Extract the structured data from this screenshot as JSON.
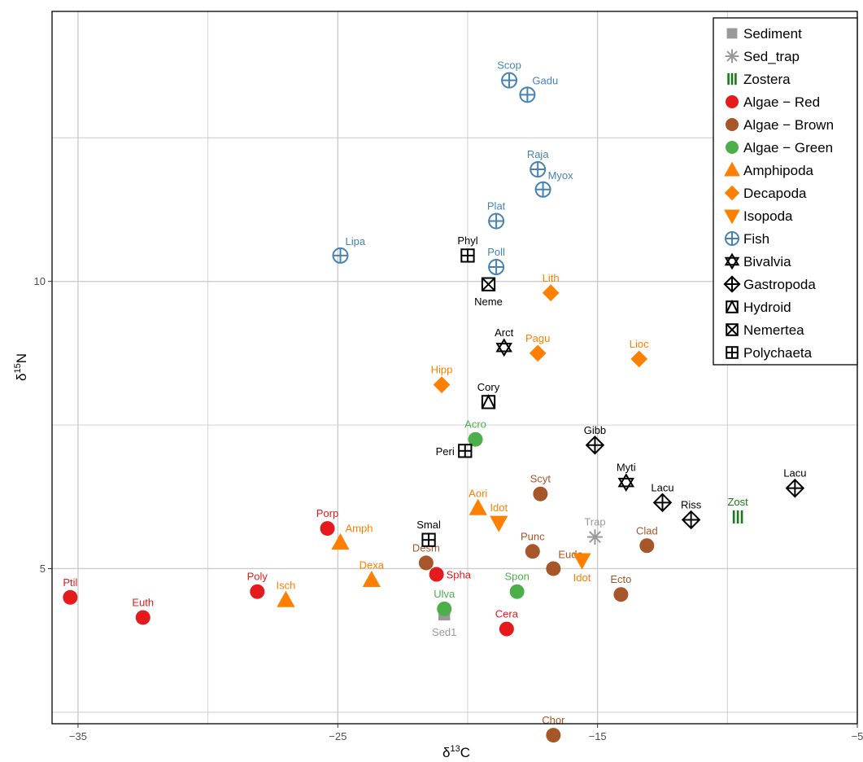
{
  "chart_data": {
    "type": "scatter",
    "xlabel": "δ13C",
    "xlabel_main": "δ",
    "xlabel_sup": "13",
    "xlabel_unit": "C",
    "ylabel": "δ15N",
    "ylabel_main": "δ",
    "ylabel_sup": "15",
    "ylabel_unit": "N",
    "xlim": [
      -36,
      -5
    ],
    "ylim": [
      2.3,
      14.7
    ],
    "xticks": [
      -35,
      -25,
      -15,
      -5
    ],
    "xtick_labels": [
      "−35",
      "−25",
      "−15",
      "−5"
    ],
    "yticks": [
      5,
      10
    ],
    "ytick_labels": [
      "5",
      "10"
    ],
    "grid": true,
    "legend_position": "top-right",
    "groups": [
      {
        "name": "Sediment",
        "marker": "square",
        "color": "#999999"
      },
      {
        "name": "Sed_trap",
        "marker": "asterisk",
        "color": "#999999"
      },
      {
        "name": "Zostera",
        "marker": "bars",
        "color": "#1a7a1a"
      },
      {
        "name": "Algae − Red",
        "marker": "circle",
        "color": "#e41a1c"
      },
      {
        "name": "Algae − Brown",
        "marker": "circle",
        "color": "#a65628"
      },
      {
        "name": "Algae − Green",
        "marker": "circle",
        "color": "#4daf4a"
      },
      {
        "name": "Amphipoda",
        "marker": "triangle-up",
        "color": "#ff7f00"
      },
      {
        "name": "Decapoda",
        "marker": "diamond",
        "color": "#ff7f00"
      },
      {
        "name": "Isopoda",
        "marker": "triangle-down",
        "color": "#ff7f00"
      },
      {
        "name": "Fish",
        "marker": "circle-plus",
        "color": "#4682b4"
      },
      {
        "name": "Bivalvia",
        "marker": "star",
        "color": "#000000"
      },
      {
        "name": "Gastropoda",
        "marker": "diamond-plus",
        "color": "#000000"
      },
      {
        "name": "Hydroid",
        "marker": "square-triangle",
        "color": "#000000"
      },
      {
        "name": "Nemertea",
        "marker": "square-x",
        "color": "#000000"
      },
      {
        "name": "Polychaeta",
        "marker": "square-plus",
        "color": "#000000"
      }
    ],
    "points": [
      {
        "label": "Sed1",
        "group": "Sediment",
        "x": -20.9,
        "y": 4.2,
        "lpos": "below"
      },
      {
        "label": "Trap",
        "group": "Sed_trap",
        "x": -15.1,
        "y": 5.55,
        "lpos": "above"
      },
      {
        "label": "Zost",
        "group": "Zostera",
        "x": -9.6,
        "y": 5.9,
        "lpos": "above"
      },
      {
        "label": "Ptil",
        "group": "Algae − Red",
        "x": -35.3,
        "y": 4.5,
        "lpos": "above"
      },
      {
        "label": "Euth",
        "group": "Algae − Red",
        "x": -32.5,
        "y": 4.15,
        "lpos": "above"
      },
      {
        "label": "Poly",
        "group": "Algae − Red",
        "x": -28.1,
        "y": 4.6,
        "lpos": "above"
      },
      {
        "label": "Porp",
        "group": "Algae − Red",
        "x": -25.4,
        "y": 5.7,
        "lpos": "above"
      },
      {
        "label": "Spha",
        "group": "Algae − Red",
        "x": -21.2,
        "y": 4.9,
        "lpos": "right"
      },
      {
        "label": "Cera",
        "group": "Algae − Red",
        "x": -18.5,
        "y": 3.95,
        "lpos": "above"
      },
      {
        "label": "Desm",
        "group": "Algae − Brown",
        "x": -21.6,
        "y": 5.1,
        "lpos": "above"
      },
      {
        "label": "Punc",
        "group": "Algae − Brown",
        "x": -17.5,
        "y": 5.3,
        "lpos": "above"
      },
      {
        "label": "Eude",
        "group": "Algae − Brown",
        "x": -16.7,
        "y": 5.0,
        "lpos": "above-right"
      },
      {
        "label": "Scyt",
        "group": "Algae − Brown",
        "x": -17.2,
        "y": 6.3,
        "lpos": "above"
      },
      {
        "label": "Clad",
        "group": "Algae − Brown",
        "x": -13.1,
        "y": 5.4,
        "lpos": "above"
      },
      {
        "label": "Ecto",
        "group": "Algae − Brown",
        "x": -14.1,
        "y": 4.55,
        "lpos": "above"
      },
      {
        "label": "Chor",
        "group": "Algae − Brown",
        "x": -16.7,
        "y": 2.1,
        "lpos": "above"
      },
      {
        "label": "Acro",
        "group": "Algae − Green",
        "x": -19.7,
        "y": 7.25,
        "lpos": "above"
      },
      {
        "label": "Spon",
        "group": "Algae − Green",
        "x": -18.1,
        "y": 4.6,
        "lpos": "above"
      },
      {
        "label": "Ulva",
        "group": "Algae − Green",
        "x": -20.9,
        "y": 4.3,
        "lpos": "above"
      },
      {
        "label": "Amph",
        "group": "Amphipoda",
        "x": -24.9,
        "y": 5.45,
        "lpos": "above-right"
      },
      {
        "label": "Isch",
        "group": "Amphipoda",
        "x": -27.0,
        "y": 4.45,
        "lpos": "above"
      },
      {
        "label": "Dexa",
        "group": "Amphipoda",
        "x": -23.7,
        "y": 4.8,
        "lpos": "above"
      },
      {
        "label": "Aori",
        "group": "Amphipoda",
        "x": -19.6,
        "y": 6.05,
        "lpos": "above"
      },
      {
        "label": "Hipp",
        "group": "Decapoda",
        "x": -21.0,
        "y": 8.2,
        "lpos": "above"
      },
      {
        "label": "Lith",
        "group": "Decapoda",
        "x": -16.8,
        "y": 9.8,
        "lpos": "above"
      },
      {
        "label": "Pagu",
        "group": "Decapoda",
        "x": -17.3,
        "y": 8.75,
        "lpos": "above"
      },
      {
        "label": "Lioc",
        "group": "Decapoda",
        "x": -13.4,
        "y": 8.65,
        "lpos": "above"
      },
      {
        "label": "Idot",
        "group": "Isopoda",
        "x": -18.8,
        "y": 5.8,
        "lpos": "above"
      },
      {
        "label": "Idot",
        "group": "Isopoda",
        "x": -15.6,
        "y": 5.15,
        "lpos": "below"
      },
      {
        "label": "Scop",
        "group": "Fish",
        "x": -18.4,
        "y": 13.5,
        "lpos": "above"
      },
      {
        "label": "Gadu",
        "group": "Fish",
        "x": -17.7,
        "y": 13.25,
        "lpos": "above-right"
      },
      {
        "label": "Raja",
        "group": "Fish",
        "x": -17.3,
        "y": 11.95,
        "lpos": "above"
      },
      {
        "label": "Myox",
        "group": "Fish",
        "x": -17.1,
        "y": 11.6,
        "lpos": "above-right"
      },
      {
        "label": "Plat",
        "group": "Fish",
        "x": -18.9,
        "y": 11.05,
        "lpos": "above"
      },
      {
        "label": "Lipa",
        "group": "Fish",
        "x": -24.9,
        "y": 10.45,
        "lpos": "above-right"
      },
      {
        "label": "Poll",
        "group": "Fish",
        "x": -18.9,
        "y": 10.25,
        "lpos": "above"
      },
      {
        "label": "Arct",
        "group": "Bivalvia",
        "x": -18.6,
        "y": 8.85,
        "lpos": "above"
      },
      {
        "label": "Myti",
        "group": "Bivalvia",
        "x": -13.9,
        "y": 6.5,
        "lpos": "above"
      },
      {
        "label": "Gibb",
        "group": "Gastropoda",
        "x": -15.1,
        "y": 7.15,
        "lpos": "above"
      },
      {
        "label": "Lacu",
        "group": "Gastropoda",
        "x": -12.5,
        "y": 6.15,
        "lpos": "above"
      },
      {
        "label": "Riss",
        "group": "Gastropoda",
        "x": -11.4,
        "y": 5.85,
        "lpos": "above"
      },
      {
        "label": "Lacu",
        "group": "Gastropoda",
        "x": -7.4,
        "y": 6.4,
        "lpos": "above"
      },
      {
        "label": "Cory",
        "group": "Hydroid",
        "x": -19.2,
        "y": 7.9,
        "lpos": "above"
      },
      {
        "label": "Neme",
        "group": "Nemertea",
        "x": -19.2,
        "y": 9.95,
        "lpos": "below"
      },
      {
        "label": "Phyl",
        "group": "Polychaeta",
        "x": -20.0,
        "y": 10.45,
        "lpos": "above"
      },
      {
        "label": "Peri",
        "group": "Polychaeta",
        "x": -20.1,
        "y": 7.05,
        "lpos": "left"
      },
      {
        "label": "Smal",
        "group": "Polychaeta",
        "x": -21.5,
        "y": 5.5,
        "lpos": "above"
      }
    ]
  }
}
